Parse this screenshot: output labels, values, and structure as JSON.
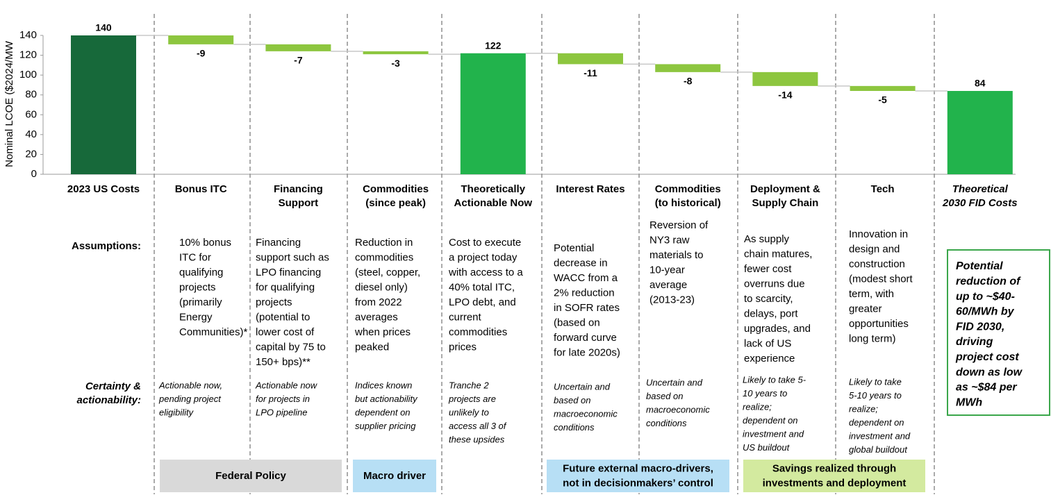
{
  "chart_data": {
    "type": "waterfall",
    "ylabel": "Nominal LCOE ($2024/MW",
    "categories": [
      [
        "2023 US Costs"
      ],
      [
        "Bonus ITC"
      ],
      [
        "Financing",
        "Support"
      ],
      [
        "Commodities",
        "(since peak)"
      ],
      [
        "Theoretically",
        "Actionable Now"
      ],
      [
        "Interest Rates"
      ],
      [
        "Commodities",
        "(to historical)"
      ],
      [
        "Deployment &",
        "Supply Chain"
      ],
      [
        "Tech"
      ],
      [
        "Theoretical",
        "2030 FID Costs"
      ]
    ],
    "values": [
      140,
      -9,
      -7,
      -3,
      122,
      -11,
      -8,
      -14,
      -5,
      84
    ],
    "is_total": [
      true,
      false,
      false,
      false,
      true,
      false,
      false,
      false,
      false,
      true
    ],
    "colors": [
      "#17693a",
      "#8dc63f",
      "#8dc63f",
      "#8dc63f",
      "#22b34c",
      "#8dc63f",
      "#8dc63f",
      "#8dc63f",
      "#8dc63f",
      "#22b34c"
    ],
    "ylim": [
      0,
      140
    ],
    "yticks": [
      0,
      20,
      40,
      60,
      80,
      100,
      120,
      140
    ]
  },
  "assumptions": {
    "label": "Assumptions:",
    "cells": [
      [
        "10% bonus",
        "ITC for",
        "qualifying",
        "projects",
        "(primarily",
        "Energy",
        "Communities)*"
      ],
      [
        "Financing",
        "support such as",
        "LPO financing",
        "for qualifying",
        "projects",
        "(potential to",
        "lower cost of",
        "capital by 75 to",
        "150+ bps)**"
      ],
      [
        "Reduction in",
        "commodities",
        "(steel, copper,",
        "diesel only)",
        "from 2022",
        "averages",
        "when prices",
        "peaked"
      ],
      [
        "Cost to execute",
        "a project today",
        "with access to a",
        "40% total ITC,",
        "LPO debt, and",
        "current",
        "commodities",
        "prices"
      ],
      [
        "Potential",
        "decrease in",
        "WACC from a",
        "2% reduction",
        "in SOFR rates",
        "(based on",
        "forward curve",
        "for late 2020s)"
      ],
      [
        "Reversion of",
        "NY3 raw",
        "materials  to",
        "10-year",
        "average",
        "(2013-23)"
      ],
      [
        "As supply",
        "chain matures,",
        "fewer cost",
        "overruns due",
        "to scarcity,",
        "delays, port",
        "upgrades, and",
        "lack of US",
        "experience"
      ],
      [
        "Innovation in",
        "design and",
        "construction",
        "(modest short",
        "term, with",
        "greater",
        "opportunities",
        "long term)"
      ]
    ]
  },
  "certainty": {
    "label": [
      "Certainty &",
      "actionability:"
    ],
    "cells": [
      [
        "Actionable now,",
        "pending project",
        "eligibility"
      ],
      [
        "Actionable now",
        "for projects in",
        "LPO pipeline"
      ],
      [
        "Indices known",
        "but actionability",
        "dependent on",
        "supplier pricing"
      ],
      [
        "Tranche 2",
        "projects are",
        "unlikely to",
        "access all 3 of",
        "these upsides"
      ],
      [
        "Uncertain and",
        "based on",
        "macroeconomic",
        "conditions"
      ],
      [
        "Uncertain and",
        "based on",
        "macroeconomic",
        "conditions"
      ],
      [
        "Likely to take 5-",
        "10 years to",
        "realize;",
        "dependent on",
        "investment and",
        "US buildout"
      ],
      [
        "Likely to take",
        "5-10 years to",
        "realize;",
        "dependent on",
        "investment and",
        "global buildout"
      ]
    ]
  },
  "conclusion": [
    "Potential",
    "reduction of",
    "up to ~$40-",
    "60/MWh by",
    "FID 2030,",
    "driving",
    "project cost",
    "down as low",
    "as ~$84 per",
    "MWh"
  ],
  "groups": [
    [
      "Federal Policy"
    ],
    [
      "Macro driver"
    ],
    [
      "Future external macro-drivers,",
      "not in decisionmakers’ control"
    ],
    [
      "Savings realized through",
      "investments and deployment"
    ]
  ]
}
